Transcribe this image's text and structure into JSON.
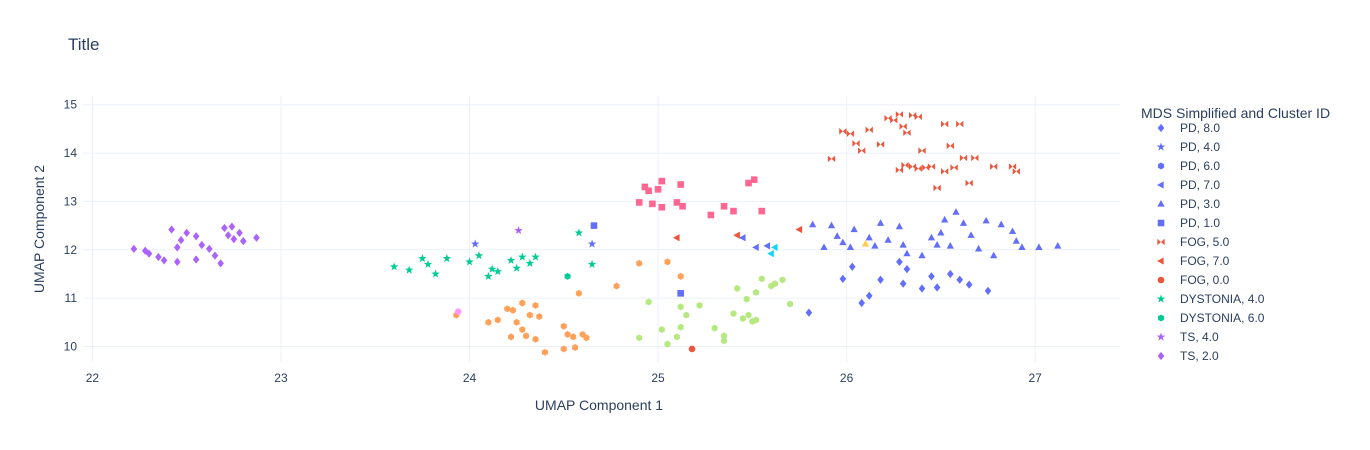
{
  "chart_data": {
    "type": "scatter",
    "title": "Title",
    "xlabel": "UMAP Component 1",
    "ylabel": "UMAP Component 2",
    "xlim": [
      21.95,
      27.45
    ],
    "ylim": [
      9.68,
      15.18
    ],
    "xticks": [
      22,
      23,
      24,
      25,
      26,
      27
    ],
    "yticks": [
      10,
      11,
      12,
      13,
      14,
      15
    ],
    "grid": true,
    "legend_title": "MDS Simplified and Cluster ID",
    "legend_position": "right",
    "series": [
      {
        "name": "PD, 8.0",
        "color": "#636efa",
        "symbol": "diamond",
        "points": [
          [
            25.8,
            10.7
          ],
          [
            25.98,
            11.4
          ],
          [
            26.03,
            11.65
          ],
          [
            26.08,
            10.9
          ],
          [
            26.12,
            11.05
          ],
          [
            26.18,
            11.38
          ],
          [
            26.28,
            11.75
          ],
          [
            26.3,
            11.3
          ],
          [
            26.32,
            11.6
          ],
          [
            26.4,
            11.2
          ],
          [
            26.45,
            11.45
          ],
          [
            26.48,
            11.22
          ],
          [
            26.55,
            11.5
          ],
          [
            26.6,
            11.38
          ],
          [
            26.65,
            11.28
          ],
          [
            26.75,
            11.15
          ]
        ]
      },
      {
        "name": "PD, 4.0",
        "color": "#636efa",
        "symbol": "star",
        "points": [
          [
            24.03,
            12.12
          ],
          [
            24.65,
            12.12
          ]
        ]
      },
      {
        "name": "PD, 6.0",
        "color": "#636efa",
        "symbol": "hexagon",
        "points": []
      },
      {
        "name": "PD, 7.0",
        "color": "#636efa",
        "symbol": "triangle-left",
        "points": [
          [
            25.45,
            12.25
          ],
          [
            25.52,
            12.05
          ],
          [
            25.58,
            12.08
          ]
        ]
      },
      {
        "name": "PD, 3.0",
        "color": "#636efa",
        "symbol": "triangle-up",
        "points": [
          [
            25.82,
            12.52
          ],
          [
            25.88,
            12.05
          ],
          [
            25.92,
            12.5
          ],
          [
            25.95,
            12.28
          ],
          [
            25.98,
            12.15
          ],
          [
            26.02,
            12.05
          ],
          [
            26.04,
            12.42
          ],
          [
            26.12,
            12.25
          ],
          [
            26.15,
            12.08
          ],
          [
            26.18,
            12.55
          ],
          [
            26.22,
            12.2
          ],
          [
            26.28,
            12.48
          ],
          [
            26.3,
            12.1
          ],
          [
            26.32,
            11.92
          ],
          [
            26.4,
            11.88
          ],
          [
            26.45,
            12.25
          ],
          [
            26.48,
            12.1
          ],
          [
            26.5,
            12.35
          ],
          [
            26.52,
            12.62
          ],
          [
            26.55,
            12.08
          ],
          [
            26.58,
            12.78
          ],
          [
            26.62,
            12.55
          ],
          [
            26.66,
            12.3
          ],
          [
            26.7,
            12.02
          ],
          [
            26.74,
            12.6
          ],
          [
            26.78,
            11.88
          ],
          [
            26.82,
            12.52
          ],
          [
            26.88,
            12.38
          ],
          [
            26.9,
            12.18
          ],
          [
            26.93,
            12.05
          ],
          [
            27.02,
            12.05
          ],
          [
            27.12,
            12.08
          ]
        ]
      },
      {
        "name": "PD, 1.0",
        "color": "#636efa",
        "symbol": "square",
        "points": [
          [
            24.66,
            12.5
          ],
          [
            25.12,
            11.1
          ]
        ]
      },
      {
        "name": "FOG, 5.0",
        "color": "#ef553b",
        "symbol": "bowtie",
        "points": [
          [
            25.92,
            13.88
          ],
          [
            25.98,
            14.45
          ],
          [
            26.02,
            14.4
          ],
          [
            26.05,
            14.2
          ],
          [
            26.08,
            14.05
          ],
          [
            26.12,
            14.48
          ],
          [
            26.18,
            14.18
          ],
          [
            26.22,
            14.72
          ],
          [
            26.25,
            14.68
          ],
          [
            26.28,
            14.8
          ],
          [
            26.3,
            14.55
          ],
          [
            26.32,
            14.42
          ],
          [
            26.35,
            14.78
          ],
          [
            26.38,
            14.75
          ],
          [
            26.4,
            14.05
          ],
          [
            26.28,
            13.65
          ],
          [
            26.31,
            13.75
          ],
          [
            26.35,
            13.72
          ],
          [
            26.38,
            13.68
          ],
          [
            26.42,
            13.7
          ],
          [
            26.45,
            13.72
          ],
          [
            26.48,
            13.28
          ],
          [
            26.52,
            13.62
          ],
          [
            26.55,
            14.15
          ],
          [
            26.52,
            14.6
          ],
          [
            26.57,
            13.7
          ],
          [
            26.6,
            14.6
          ],
          [
            26.62,
            13.9
          ],
          [
            26.65,
            13.38
          ],
          [
            26.68,
            13.9
          ],
          [
            26.78,
            13.72
          ],
          [
            26.88,
            13.72
          ],
          [
            26.9,
            13.62
          ]
        ]
      },
      {
        "name": "FOG, 7.0",
        "color": "#ef553b",
        "symbol": "triangle-left",
        "points": [
          [
            25.1,
            12.25
          ],
          [
            25.42,
            12.3
          ],
          [
            25.75,
            12.42
          ]
        ]
      },
      {
        "name": "FOG, 0.0",
        "color": "#ef553b",
        "symbol": "circle",
        "points": [
          [
            25.18,
            9.95
          ]
        ]
      },
      {
        "name": "DYSTONIA, 4.0",
        "color": "#00cc96",
        "symbol": "star",
        "points": [
          [
            23.6,
            11.65
          ],
          [
            23.68,
            11.58
          ],
          [
            23.75,
            11.82
          ],
          [
            23.78,
            11.7
          ],
          [
            23.82,
            11.5
          ],
          [
            23.88,
            11.82
          ],
          [
            24.0,
            11.75
          ],
          [
            24.05,
            11.88
          ],
          [
            24.1,
            11.45
          ],
          [
            24.12,
            11.6
          ],
          [
            24.15,
            11.55
          ],
          [
            24.22,
            11.78
          ],
          [
            24.25,
            11.62
          ],
          [
            24.28,
            11.85
          ],
          [
            24.32,
            11.72
          ],
          [
            24.35,
            11.85
          ],
          [
            24.58,
            12.35
          ],
          [
            24.65,
            11.7
          ]
        ]
      },
      {
        "name": "DYSTONIA, 6.0",
        "color": "#00cc96",
        "symbol": "hexagon",
        "points": [
          [
            24.52,
            11.45
          ]
        ]
      },
      {
        "name": "TS, 4.0",
        "color": "#ab63fa",
        "symbol": "star",
        "points": [
          [
            24.26,
            12.4
          ]
        ]
      },
      {
        "name": "TS, 2.0",
        "color": "#ab63fa",
        "symbol": "diamond",
        "points": [
          [
            22.22,
            12.02
          ],
          [
            22.28,
            11.98
          ],
          [
            22.3,
            11.92
          ],
          [
            22.35,
            11.85
          ],
          [
            22.38,
            11.78
          ],
          [
            22.42,
            12.42
          ],
          [
            22.45,
            12.05
          ],
          [
            22.47,
            12.2
          ],
          [
            22.45,
            11.75
          ],
          [
            22.5,
            12.35
          ],
          [
            22.55,
            12.28
          ],
          [
            22.55,
            11.8
          ],
          [
            22.58,
            12.1
          ],
          [
            22.62,
            12.02
          ],
          [
            22.65,
            11.88
          ],
          [
            22.68,
            11.72
          ],
          [
            22.7,
            12.45
          ],
          [
            22.72,
            12.3
          ],
          [
            22.74,
            12.48
          ],
          [
            22.75,
            12.22
          ],
          [
            22.78,
            12.35
          ],
          [
            22.8,
            12.18
          ],
          [
            22.87,
            12.25
          ]
        ]
      },
      {
        "name": "",
        "color": "#ffa15a",
        "symbol": "hexagon",
        "points": [
          [
            23.93,
            10.65
          ],
          [
            24.1,
            10.5
          ],
          [
            24.15,
            10.55
          ],
          [
            24.2,
            10.78
          ],
          [
            24.23,
            10.75
          ],
          [
            24.25,
            10.5
          ],
          [
            24.28,
            10.9
          ],
          [
            24.32,
            10.65
          ],
          [
            24.35,
            10.85
          ],
          [
            24.37,
            10.62
          ],
          [
            24.22,
            10.2
          ],
          [
            24.28,
            10.35
          ],
          [
            24.3,
            10.22
          ],
          [
            24.35,
            10.15
          ],
          [
            24.4,
            9.88
          ],
          [
            24.5,
            10.42
          ],
          [
            24.52,
            10.25
          ],
          [
            24.55,
            10.2
          ],
          [
            24.5,
            9.95
          ],
          [
            24.56,
            9.98
          ],
          [
            24.6,
            10.25
          ],
          [
            24.62,
            10.18
          ],
          [
            24.58,
            11.1
          ],
          [
            24.78,
            11.25
          ],
          [
            24.9,
            11.72
          ],
          [
            25.05,
            11.75
          ],
          [
            25.12,
            11.45
          ]
        ]
      },
      {
        "name": "",
        "color": "#19d3f3",
        "symbol": "triangle-left",
        "points": [
          [
            25.6,
            11.92
          ],
          [
            25.62,
            12.05
          ]
        ]
      },
      {
        "name": "",
        "color": "#ff6692",
        "symbol": "square",
        "points": [
          [
            24.9,
            12.98
          ],
          [
            24.93,
            13.3
          ],
          [
            24.95,
            13.22
          ],
          [
            24.97,
            12.95
          ],
          [
            25.0,
            13.25
          ],
          [
            25.02,
            13.42
          ],
          [
            25.02,
            12.88
          ],
          [
            25.1,
            12.98
          ],
          [
            25.12,
            13.35
          ],
          [
            25.13,
            12.9
          ],
          [
            25.28,
            12.72
          ],
          [
            25.35,
            12.9
          ],
          [
            25.4,
            12.8
          ],
          [
            25.48,
            13.38
          ],
          [
            25.51,
            13.45
          ],
          [
            25.55,
            12.8
          ]
        ]
      },
      {
        "name": "",
        "color": "#b6e880",
        "symbol": "hexagon",
        "points": [
          [
            24.9,
            10.18
          ],
          [
            24.95,
            10.92
          ],
          [
            25.02,
            10.35
          ],
          [
            25.05,
            10.05
          ],
          [
            25.1,
            10.2
          ],
          [
            25.12,
            10.4
          ],
          [
            25.12,
            10.82
          ],
          [
            25.15,
            10.65
          ],
          [
            25.22,
            10.85
          ],
          [
            25.3,
            10.38
          ],
          [
            25.35,
            10.22
          ],
          [
            25.35,
            10.12
          ],
          [
            25.4,
            10.68
          ],
          [
            25.42,
            11.2
          ],
          [
            25.45,
            10.58
          ],
          [
            25.47,
            10.98
          ],
          [
            25.48,
            10.65
          ],
          [
            25.5,
            10.52
          ],
          [
            25.52,
            10.55
          ],
          [
            25.52,
            11.12
          ],
          [
            25.55,
            11.4
          ],
          [
            25.6,
            11.25
          ],
          [
            25.62,
            11.3
          ],
          [
            25.66,
            11.38
          ],
          [
            25.7,
            10.88
          ]
        ]
      },
      {
        "name": "",
        "color": "#ff97ff",
        "symbol": "circle",
        "points": [
          [
            23.94,
            10.72
          ]
        ]
      },
      {
        "name": "",
        "color": "#fecb52",
        "symbol": "triangle-up",
        "points": [
          [
            26.1,
            12.12
          ]
        ]
      }
    ]
  }
}
